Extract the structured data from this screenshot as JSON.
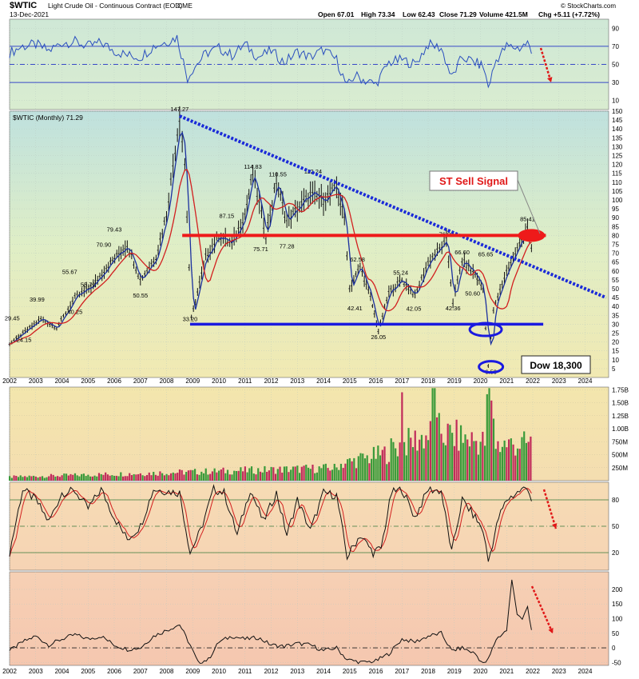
{
  "header": {
    "symbol": "$WTIC",
    "name": "Light Crude Oil - Continuous Contract (EOD)",
    "exchange": "CME",
    "date": "13-Dec-2021",
    "open": "Open 67.01",
    "high": "High 73.34",
    "low": "Low 62.43",
    "close": "Close 71.29",
    "volume": "Volume 421.5M",
    "chg": "Chg +5.11 (+7.72%)",
    "credit": "© StockCharts.com"
  },
  "price_legend": "$WTIC (Monthly) 71.29",
  "annotations": {
    "sell_signal": "ST Sell Signal",
    "dow": "Dow 18,300"
  },
  "chart_data": [
    {
      "type": "line",
      "panel": "rsi",
      "ylim": [
        0,
        100
      ],
      "ticks": [
        10,
        30,
        50,
        70,
        90
      ],
      "x": [
        2002.0,
        2002.5,
        2003.0,
        2003.5,
        2004.0,
        2004.5,
        2005.0,
        2005.5,
        2006.0,
        2006.5,
        2007.0,
        2007.5,
        2008.0,
        2008.4,
        2008.8,
        2009.0,
        2009.5,
        2010.0,
        2010.5,
        2011.0,
        2011.5,
        2012.0,
        2012.5,
        2013.0,
        2013.5,
        2014.0,
        2014.5,
        2014.9,
        2015.2,
        2015.6,
        2016.0,
        2016.5,
        2017.0,
        2017.5,
        2018.0,
        2018.5,
        2018.9,
        2019.3,
        2019.8,
        2020.1,
        2020.3,
        2020.6,
        2021.0,
        2021.5,
        2021.8,
        2021.95
      ],
      "values": [
        63,
        70,
        72,
        65,
        74,
        75,
        70,
        74,
        65,
        60,
        58,
        70,
        75,
        80,
        35,
        45,
        62,
        68,
        60,
        72,
        58,
        65,
        52,
        64,
        58,
        66,
        55,
        25,
        38,
        32,
        28,
        52,
        55,
        50,
        72,
        68,
        35,
        58,
        52,
        48,
        25,
        55,
        70,
        68,
        74,
        62
      ]
    },
    {
      "type": "line",
      "panel": "price",
      "ylim": [
        0,
        150
      ],
      "ticks": [
        5,
        10,
        15,
        20,
        25,
        30,
        35,
        40,
        45,
        50,
        55,
        60,
        65,
        70,
        75,
        80,
        85,
        90,
        95,
        100,
        105,
        110,
        115,
        120,
        125,
        130,
        135,
        140,
        145,
        150
      ],
      "x_ticks": [
        "2002",
        "2003",
        "2004",
        "2005",
        "2006",
        "2007",
        "2008",
        "2009",
        "2010",
        "2011",
        "2012",
        "2013",
        "2014",
        "2015",
        "2016",
        "2017",
        "2018",
        "2019",
        "2020",
        "2021",
        "2022",
        "2023",
        "2024"
      ],
      "x": [
        2002.0,
        2002.6,
        2003.2,
        2003.8,
        2004.5,
        2005.2,
        2005.7,
        2006.5,
        2007.0,
        2007.6,
        2008.0,
        2008.5,
        2008.7,
        2008.95,
        2009.5,
        2010.0,
        2010.5,
        2011.0,
        2011.3,
        2011.8,
        2012.2,
        2012.6,
        2013.0,
        2013.5,
        2014.0,
        2014.5,
        2014.8,
        2015.0,
        2015.4,
        2015.8,
        2016.1,
        2016.5,
        2017.0,
        2017.5,
        2018.0,
        2018.7,
        2018.95,
        2019.3,
        2019.8,
        2020.1,
        2020.3,
        2020.5,
        2021.0,
        2021.5,
        2021.8,
        2021.95
      ],
      "values": [
        19,
        26,
        33,
        28,
        45,
        52,
        62,
        75,
        55,
        68,
        92,
        147.27,
        120,
        33.2,
        68,
        80,
        75,
        92,
        114.83,
        80,
        110.55,
        88,
        95,
        103,
        100,
        107,
        90,
        50,
        62.58,
        45,
        26.05,
        48,
        55,
        46,
        65,
        76.9,
        42.36,
        66,
        58,
        50,
        6.5,
        38,
        60,
        75,
        85.41,
        71.29
      ]
    },
    {
      "type": "bar",
      "panel": "volume",
      "ylim": [
        0,
        1800000000
      ],
      "ticks": [
        "250M",
        "500M",
        "750M",
        "1.00B",
        "1.25B",
        "1.50B",
        "1.75B"
      ]
    },
    {
      "type": "line",
      "panel": "stochastic",
      "ylim": [
        0,
        100
      ],
      "ticks": [
        20,
        50,
        80
      ],
      "x": [
        2002.0,
        2002.5,
        2003.0,
        2003.5,
        2004.0,
        2004.5,
        2005.0,
        2005.5,
        2006.0,
        2006.5,
        2007.0,
        2007.5,
        2008.0,
        2008.5,
        2008.9,
        2009.3,
        2009.8,
        2010.2,
        2010.7,
        2011.2,
        2011.7,
        2012.2,
        2012.6,
        2013.0,
        2013.5,
        2014.0,
        2014.5,
        2014.9,
        2015.4,
        2015.9,
        2016.2,
        2016.6,
        2017.0,
        2017.5,
        2018.0,
        2018.5,
        2018.9,
        2019.3,
        2019.8,
        2020.1,
        2020.3,
        2020.7,
        2021.0,
        2021.5,
        2021.8,
        2021.95
      ],
      "values": [
        20,
        92,
        80,
        55,
        88,
        90,
        70,
        92,
        60,
        35,
        50,
        92,
        90,
        88,
        20,
        45,
        92,
        88,
        40,
        92,
        55,
        88,
        40,
        80,
        45,
        88,
        85,
        15,
        40,
        20,
        25,
        88,
        92,
        60,
        92,
        90,
        20,
        80,
        60,
        45,
        10,
        60,
        80,
        90,
        95,
        80
      ]
    },
    {
      "type": "line",
      "panel": "roc",
      "ylim": [
        -60,
        260
      ],
      "ticks": [
        -50,
        0,
        50,
        100,
        150,
        200
      ],
      "x": [
        2002.0,
        2002.5,
        2003.0,
        2003.5,
        2004.0,
        2004.5,
        2005.0,
        2005.5,
        2006.0,
        2006.5,
        2007.0,
        2007.5,
        2008.0,
        2008.5,
        2008.9,
        2009.2,
        2009.6,
        2010.0,
        2010.5,
        2011.0,
        2011.5,
        2012.0,
        2012.5,
        2013.0,
        2013.5,
        2014.0,
        2014.5,
        2014.9,
        2015.5,
        2016.0,
        2016.5,
        2017.0,
        2017.5,
        2018.0,
        2018.5,
        2018.9,
        2019.3,
        2019.8,
        2020.1,
        2020.3,
        2020.6,
        2021.0,
        2021.2,
        2021.4,
        2021.6,
        2021.8,
        2021.95
      ],
      "values": [
        -10,
        20,
        40,
        10,
        30,
        45,
        30,
        40,
        10,
        -5,
        0,
        40,
        60,
        80,
        10,
        -50,
        -40,
        20,
        40,
        30,
        35,
        10,
        5,
        15,
        10,
        -10,
        0,
        -40,
        -50,
        -45,
        -20,
        30,
        20,
        40,
        50,
        -10,
        0,
        -20,
        -55,
        -40,
        30,
        60,
        230,
        120,
        100,
        135,
        60
      ]
    }
  ]
}
